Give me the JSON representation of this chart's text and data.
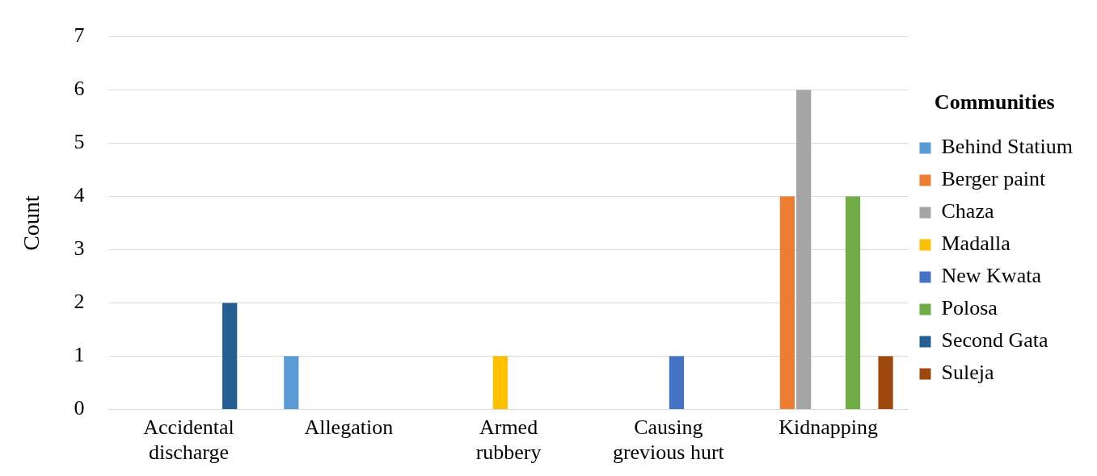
{
  "chart_data": {
    "type": "bar",
    "ylabel": "Count",
    "legend_title": "Communities",
    "categories": [
      "Accidental discharge",
      "Allegation",
      "Armed rubbery",
      "Causing grevious hurt",
      "Kidnapping"
    ],
    "series": [
      {
        "name": "Behind Statium",
        "color": "#5b9bd5",
        "values": [
          0,
          1,
          0,
          0,
          0
        ]
      },
      {
        "name": "Berger paint",
        "color": "#ed7d31",
        "values": [
          0,
          0,
          0,
          0,
          4
        ]
      },
      {
        "name": "Chaza",
        "color": "#a5a5a5",
        "values": [
          0,
          0,
          0,
          0,
          6
        ]
      },
      {
        "name": "Madalla",
        "color": "#ffc000",
        "values": [
          0,
          0,
          1,
          0,
          0
        ]
      },
      {
        "name": "New Kwata",
        "color": "#4472c4",
        "values": [
          0,
          0,
          0,
          1,
          0
        ]
      },
      {
        "name": "Polosa",
        "color": "#70ad47",
        "values": [
          0,
          0,
          0,
          0,
          4
        ]
      },
      {
        "name": "Second Gata",
        "color": "#255e91",
        "values": [
          2,
          0,
          0,
          0,
          0
        ]
      },
      {
        "name": "Suleja",
        "color": "#9e480e",
        "values": [
          0,
          0,
          0,
          0,
          1
        ]
      }
    ],
    "ylim": [
      0,
      7
    ],
    "yticks": [
      0,
      1,
      2,
      3,
      4,
      5,
      6,
      7
    ],
    "grid": "y",
    "legend": "right"
  }
}
